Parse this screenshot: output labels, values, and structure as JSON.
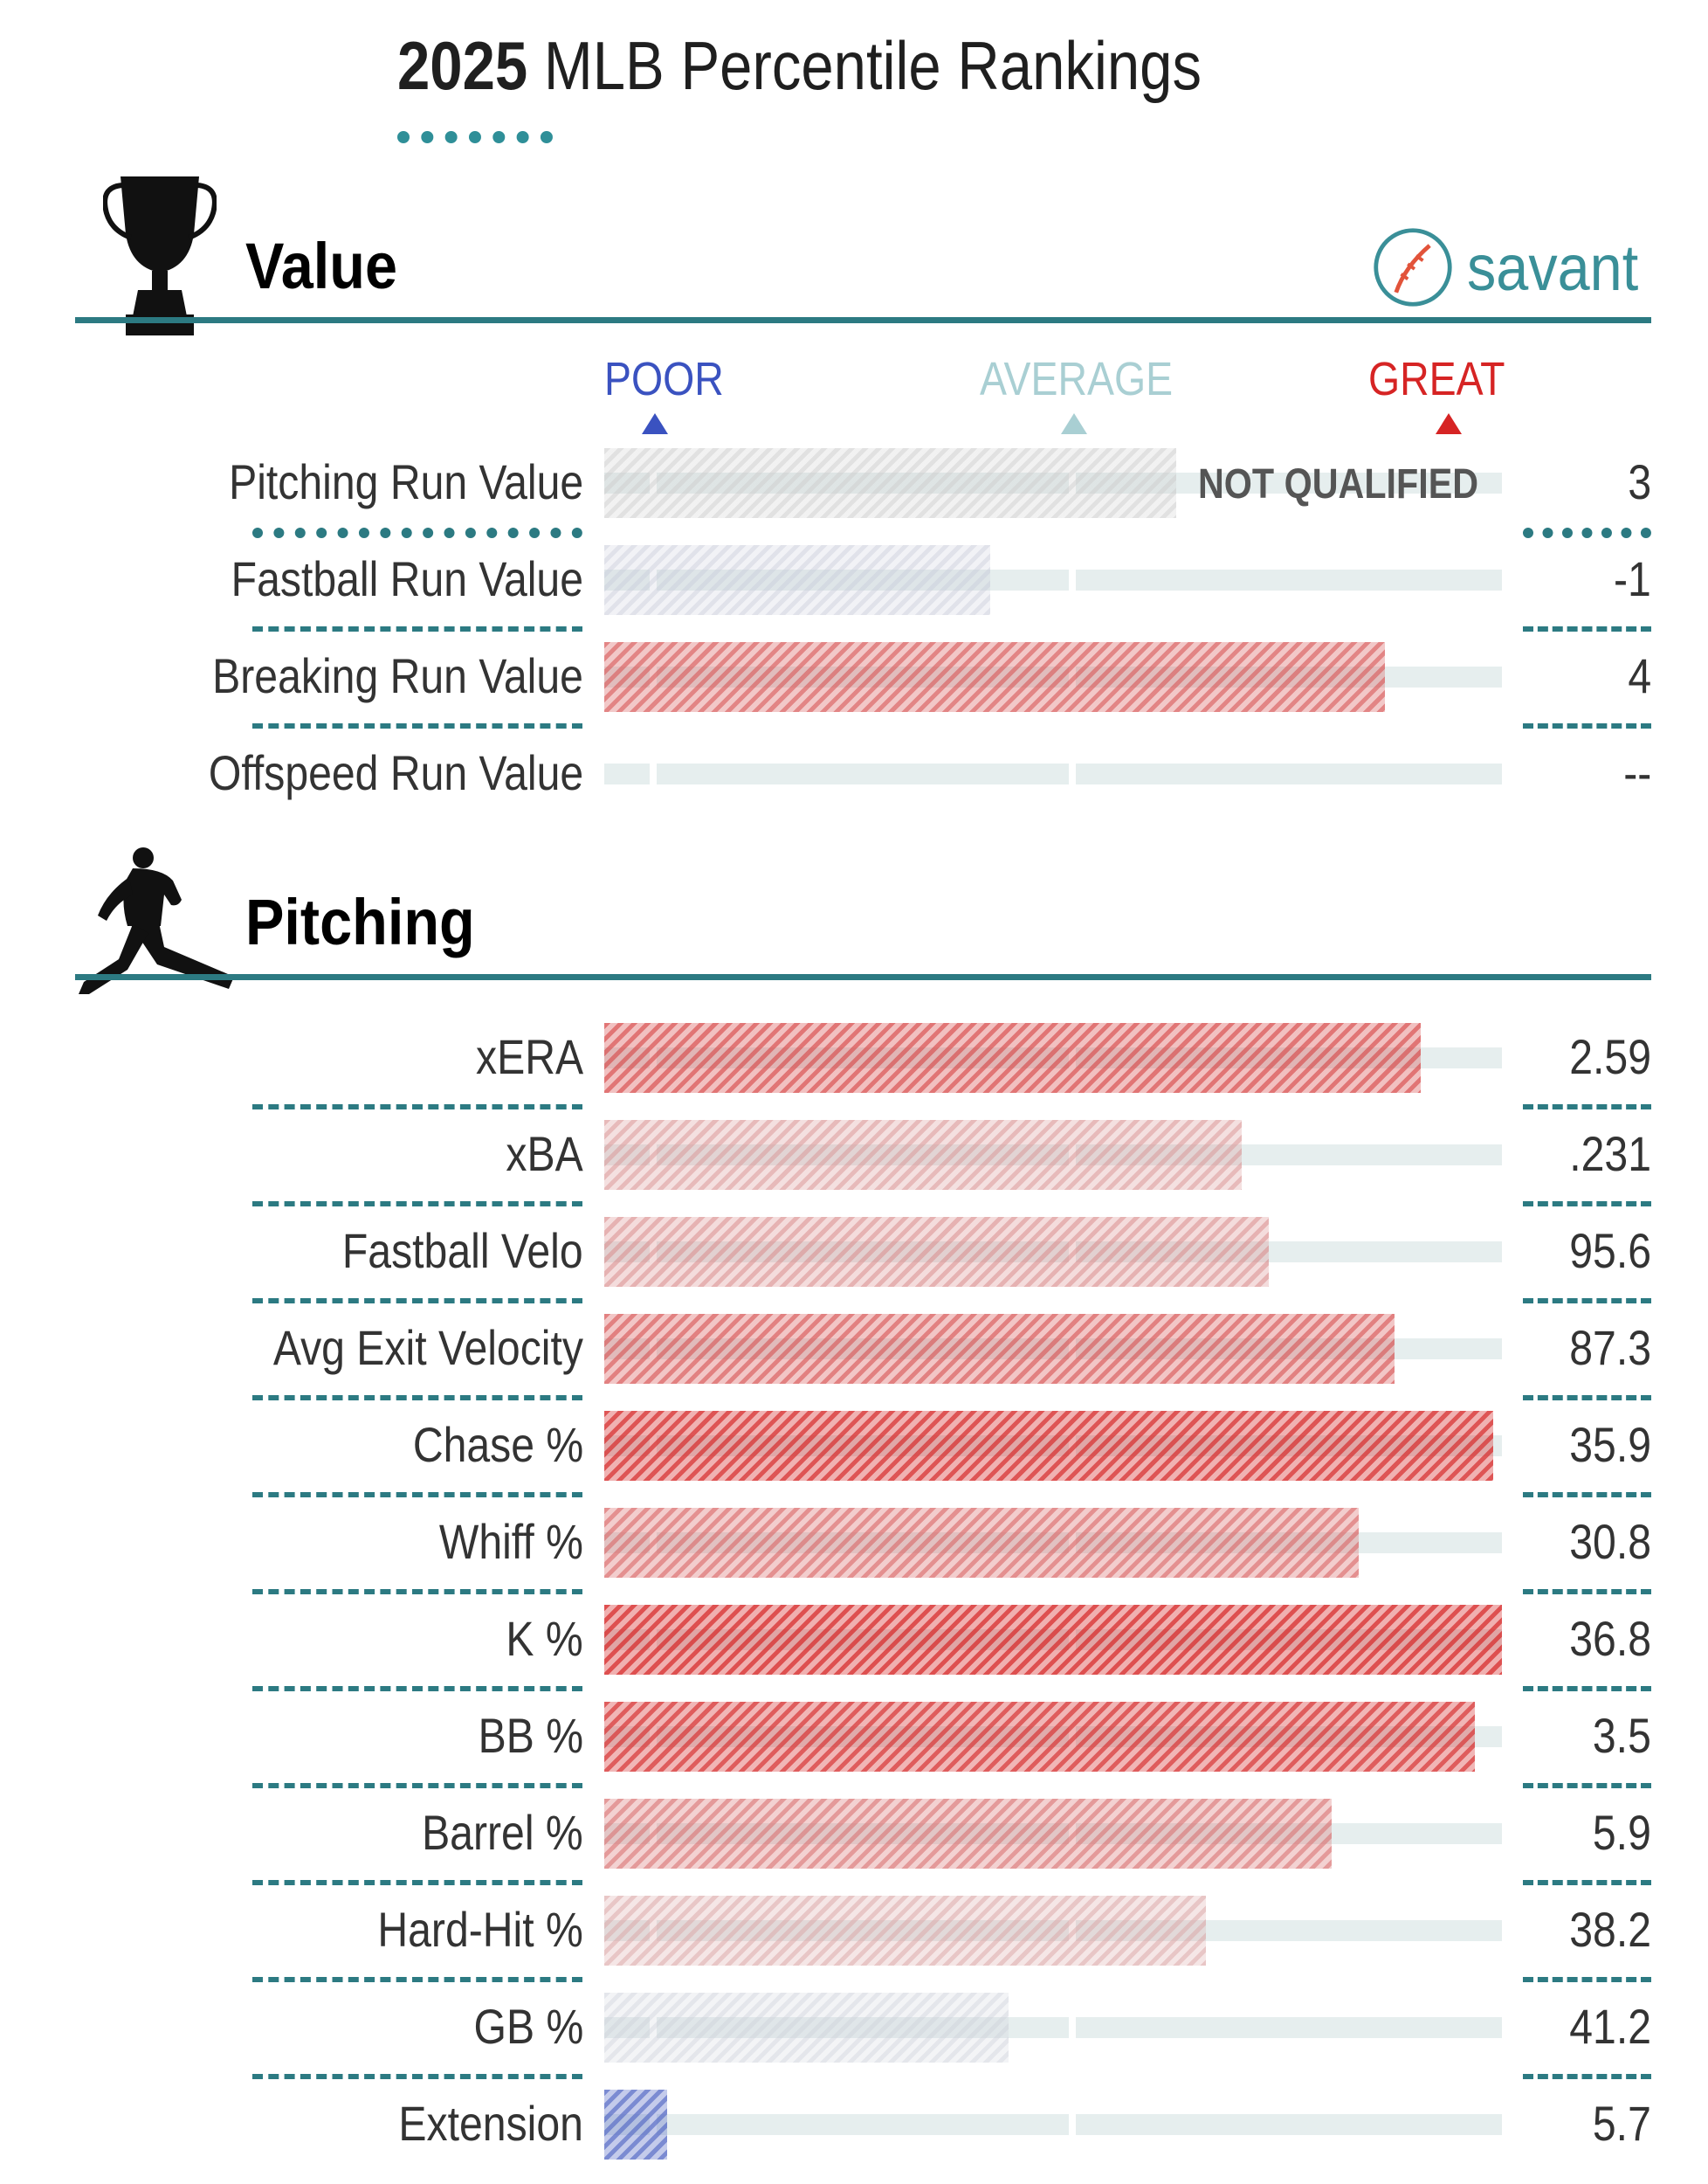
{
  "title": {
    "bold": "2025",
    "rest": "MLB Percentile Rankings"
  },
  "brand": {
    "name": "savant",
    "icon": "baseball-icon"
  },
  "scale": {
    "poor": "POOR",
    "average": "AVERAGE",
    "great": "GREAT"
  },
  "colors": {
    "teal": "#2c7a82",
    "poor": "#3a52c0",
    "average": "#a9cfd3",
    "great": "#d62424",
    "track": "#e6eeee",
    "not_qualified": "#c8c8c8"
  },
  "sections": [
    {
      "title": "Value",
      "icon": "trophy-icon",
      "rows": [
        {
          "label": "Pitching Run Value",
          "value": "3",
          "percentile": null,
          "note": "NOT QUALIFIED"
        },
        {
          "label": "Fastball Run Value",
          "value": "-1",
          "percentile": 43
        },
        {
          "label": "Breaking Run Value",
          "value": "4",
          "percentile": 87
        },
        {
          "label": "Offspeed Run Value",
          "value": "--",
          "percentile": null
        }
      ]
    },
    {
      "title": "Pitching",
      "icon": "pitcher-icon",
      "rows": [
        {
          "label": "xERA",
          "value": "2.59",
          "percentile": 91
        },
        {
          "label": "xBA",
          "value": ".231",
          "percentile": 71
        },
        {
          "label": "Fastball Velo",
          "value": "95.6",
          "percentile": 74
        },
        {
          "label": "Avg Exit Velocity",
          "value": "87.3",
          "percentile": 88
        },
        {
          "label": "Chase %",
          "value": "35.9",
          "percentile": 99
        },
        {
          "label": "Whiff %",
          "value": "30.8",
          "percentile": 84
        },
        {
          "label": "K %",
          "value": "36.8",
          "percentile": 100
        },
        {
          "label": "BB %",
          "value": "3.5",
          "percentile": 97
        },
        {
          "label": "Barrel %",
          "value": "5.9",
          "percentile": 81
        },
        {
          "label": "Hard-Hit %",
          "value": "38.2",
          "percentile": 67
        },
        {
          "label": "GB %",
          "value": "41.2",
          "percentile": 45
        },
        {
          "label": "Extension",
          "value": "5.7",
          "percentile": 7
        }
      ]
    }
  ],
  "chart_data": {
    "type": "bar",
    "orientation": "horizontal",
    "xlim": [
      0,
      100
    ],
    "series": [
      {
        "name": "Value",
        "categories": [
          "Pitching Run Value",
          "Fastball Run Value",
          "Breaking Run Value",
          "Offspeed Run Value"
        ],
        "values": [
          null,
          43,
          87,
          null
        ],
        "displayed_values": [
          "3",
          "-1",
          "4",
          "--"
        ]
      },
      {
        "name": "Pitching",
        "categories": [
          "xERA",
          "xBA",
          "Fastball Velo",
          "Avg Exit Velocity",
          "Chase %",
          "Whiff %",
          "K %",
          "BB %",
          "Barrel %",
          "Hard-Hit %",
          "GB %",
          "Extension"
        ],
        "values": [
          91,
          71,
          74,
          88,
          99,
          84,
          100,
          97,
          81,
          67,
          45,
          7
        ],
        "displayed_values": [
          "2.59",
          ".231",
          "95.6",
          "87.3",
          "35.9",
          "30.8",
          "36.8",
          "3.5",
          "5.9",
          "38.2",
          "41.2",
          "5.7"
        ]
      }
    ]
  }
}
